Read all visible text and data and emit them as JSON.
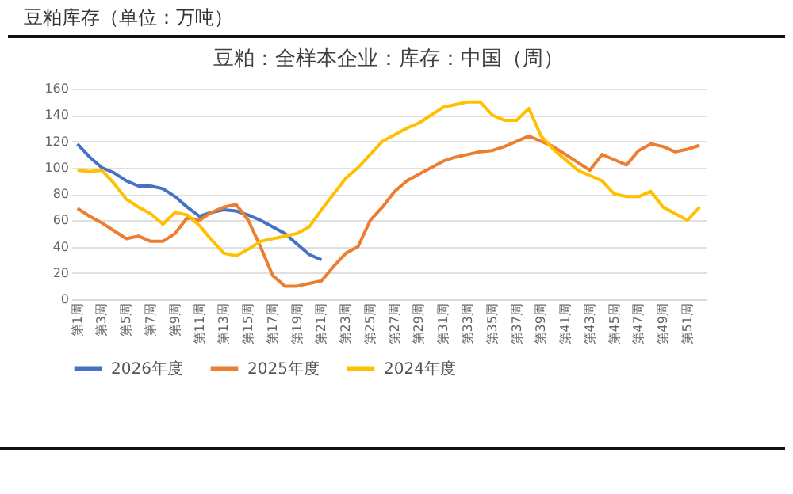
{
  "chart_data": {
    "type": "line",
    "title": "豆粕库存（单位：万吨）",
    "subtitle": "豆粕：全样本企业：库存：中国（周）",
    "categories": [
      "第1周",
      null,
      "第3周",
      null,
      "第5周",
      null,
      "第7周",
      null,
      "第9周",
      null,
      "第11周",
      null,
      "第13周",
      null,
      "第15周",
      null,
      "第17周",
      null,
      "第19周",
      null,
      "第21周",
      null,
      "第23周",
      null,
      "第25周",
      null,
      "第27周",
      null,
      "第29周",
      null,
      "第31周",
      null,
      "第33周",
      null,
      "第35周",
      null,
      "第37周",
      null,
      "第39周",
      null,
      "第41周",
      null,
      "第43周",
      null,
      "第45周",
      null,
      "第47周",
      null,
      "第49周",
      null,
      "第51周",
      null
    ],
    "series": [
      {
        "name": "2026年度",
        "color": "#4472c4",
        "values": [
          118,
          108,
          100,
          96,
          90,
          86,
          86,
          84,
          78,
          70,
          63,
          66,
          68,
          67,
          64,
          60,
          55,
          50,
          42,
          34,
          30,
          null,
          null,
          null,
          null,
          null,
          null,
          null,
          null,
          null,
          null,
          null,
          null,
          null,
          null,
          null,
          null,
          null,
          null,
          null,
          null,
          null,
          null,
          null,
          null,
          null,
          null,
          null,
          null,
          null,
          null,
          null
        ]
      },
      {
        "name": "2025年度",
        "color": "#ed7d31",
        "values": [
          69,
          63,
          58,
          52,
          46,
          48,
          44,
          44,
          50,
          62,
          60,
          66,
          70,
          72,
          60,
          40,
          18,
          10,
          10,
          12,
          14,
          25,
          35,
          40,
          60,
          70,
          82,
          90,
          95,
          100,
          105,
          108,
          110,
          112,
          113,
          116,
          120,
          124,
          120,
          116,
          110,
          104,
          98,
          110,
          106,
          102,
          113,
          118,
          116,
          112,
          114,
          117
        ]
      },
      {
        "name": "2024年度",
        "color": "#ffc000",
        "values": [
          98,
          97,
          98,
          88,
          76,
          70,
          65,
          57,
          66,
          64,
          56,
          45,
          35,
          33,
          38,
          44,
          46,
          48,
          50,
          55,
          68,
          80,
          92,
          100,
          110,
          120,
          125,
          130,
          134,
          140,
          146,
          148,
          150,
          150,
          140,
          136,
          136,
          145,
          124,
          114,
          106,
          98,
          94,
          90,
          80,
          78,
          78,
          82,
          70,
          65,
          60,
          70
        ]
      }
    ],
    "ylim": [
      0,
      160
    ],
    "yticks": [
      0,
      20,
      40,
      60,
      80,
      100,
      120,
      140,
      160
    ],
    "grid": "y",
    "legend": "bottom",
    "marker": "none",
    "line_style": "solid"
  }
}
